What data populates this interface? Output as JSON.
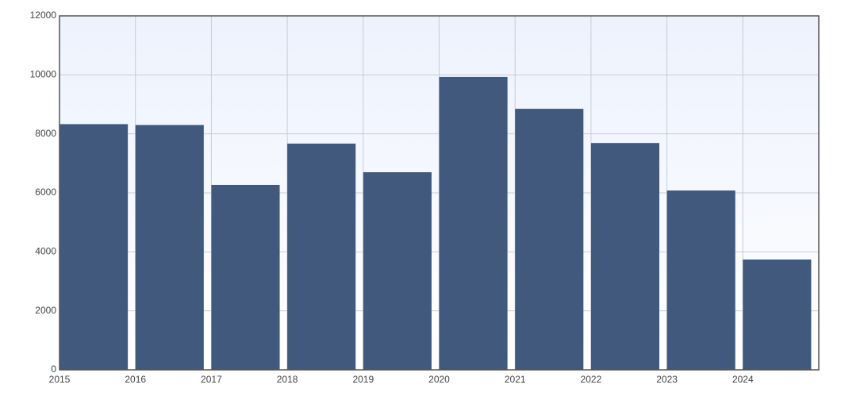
{
  "chart_data": {
    "type": "bar",
    "x": [
      2015,
      2016,
      2017,
      2018,
      2019,
      2020,
      2021,
      2022,
      2023,
      2024
    ],
    "values": [
      8330,
      8300,
      6270,
      7670,
      6700,
      9930,
      8850,
      7690,
      6080,
      3740
    ],
    "color": "#41597c",
    "xlim": [
      2015,
      2025
    ],
    "xticks": [
      2015,
      2016,
      2017,
      2018,
      2019,
      2020,
      2021,
      2022,
      2023,
      2024
    ],
    "ylim": [
      0,
      12000
    ],
    "yticks": [
      0,
      2000,
      4000,
      6000,
      8000,
      10000,
      12000
    ],
    "grid": true
  }
}
